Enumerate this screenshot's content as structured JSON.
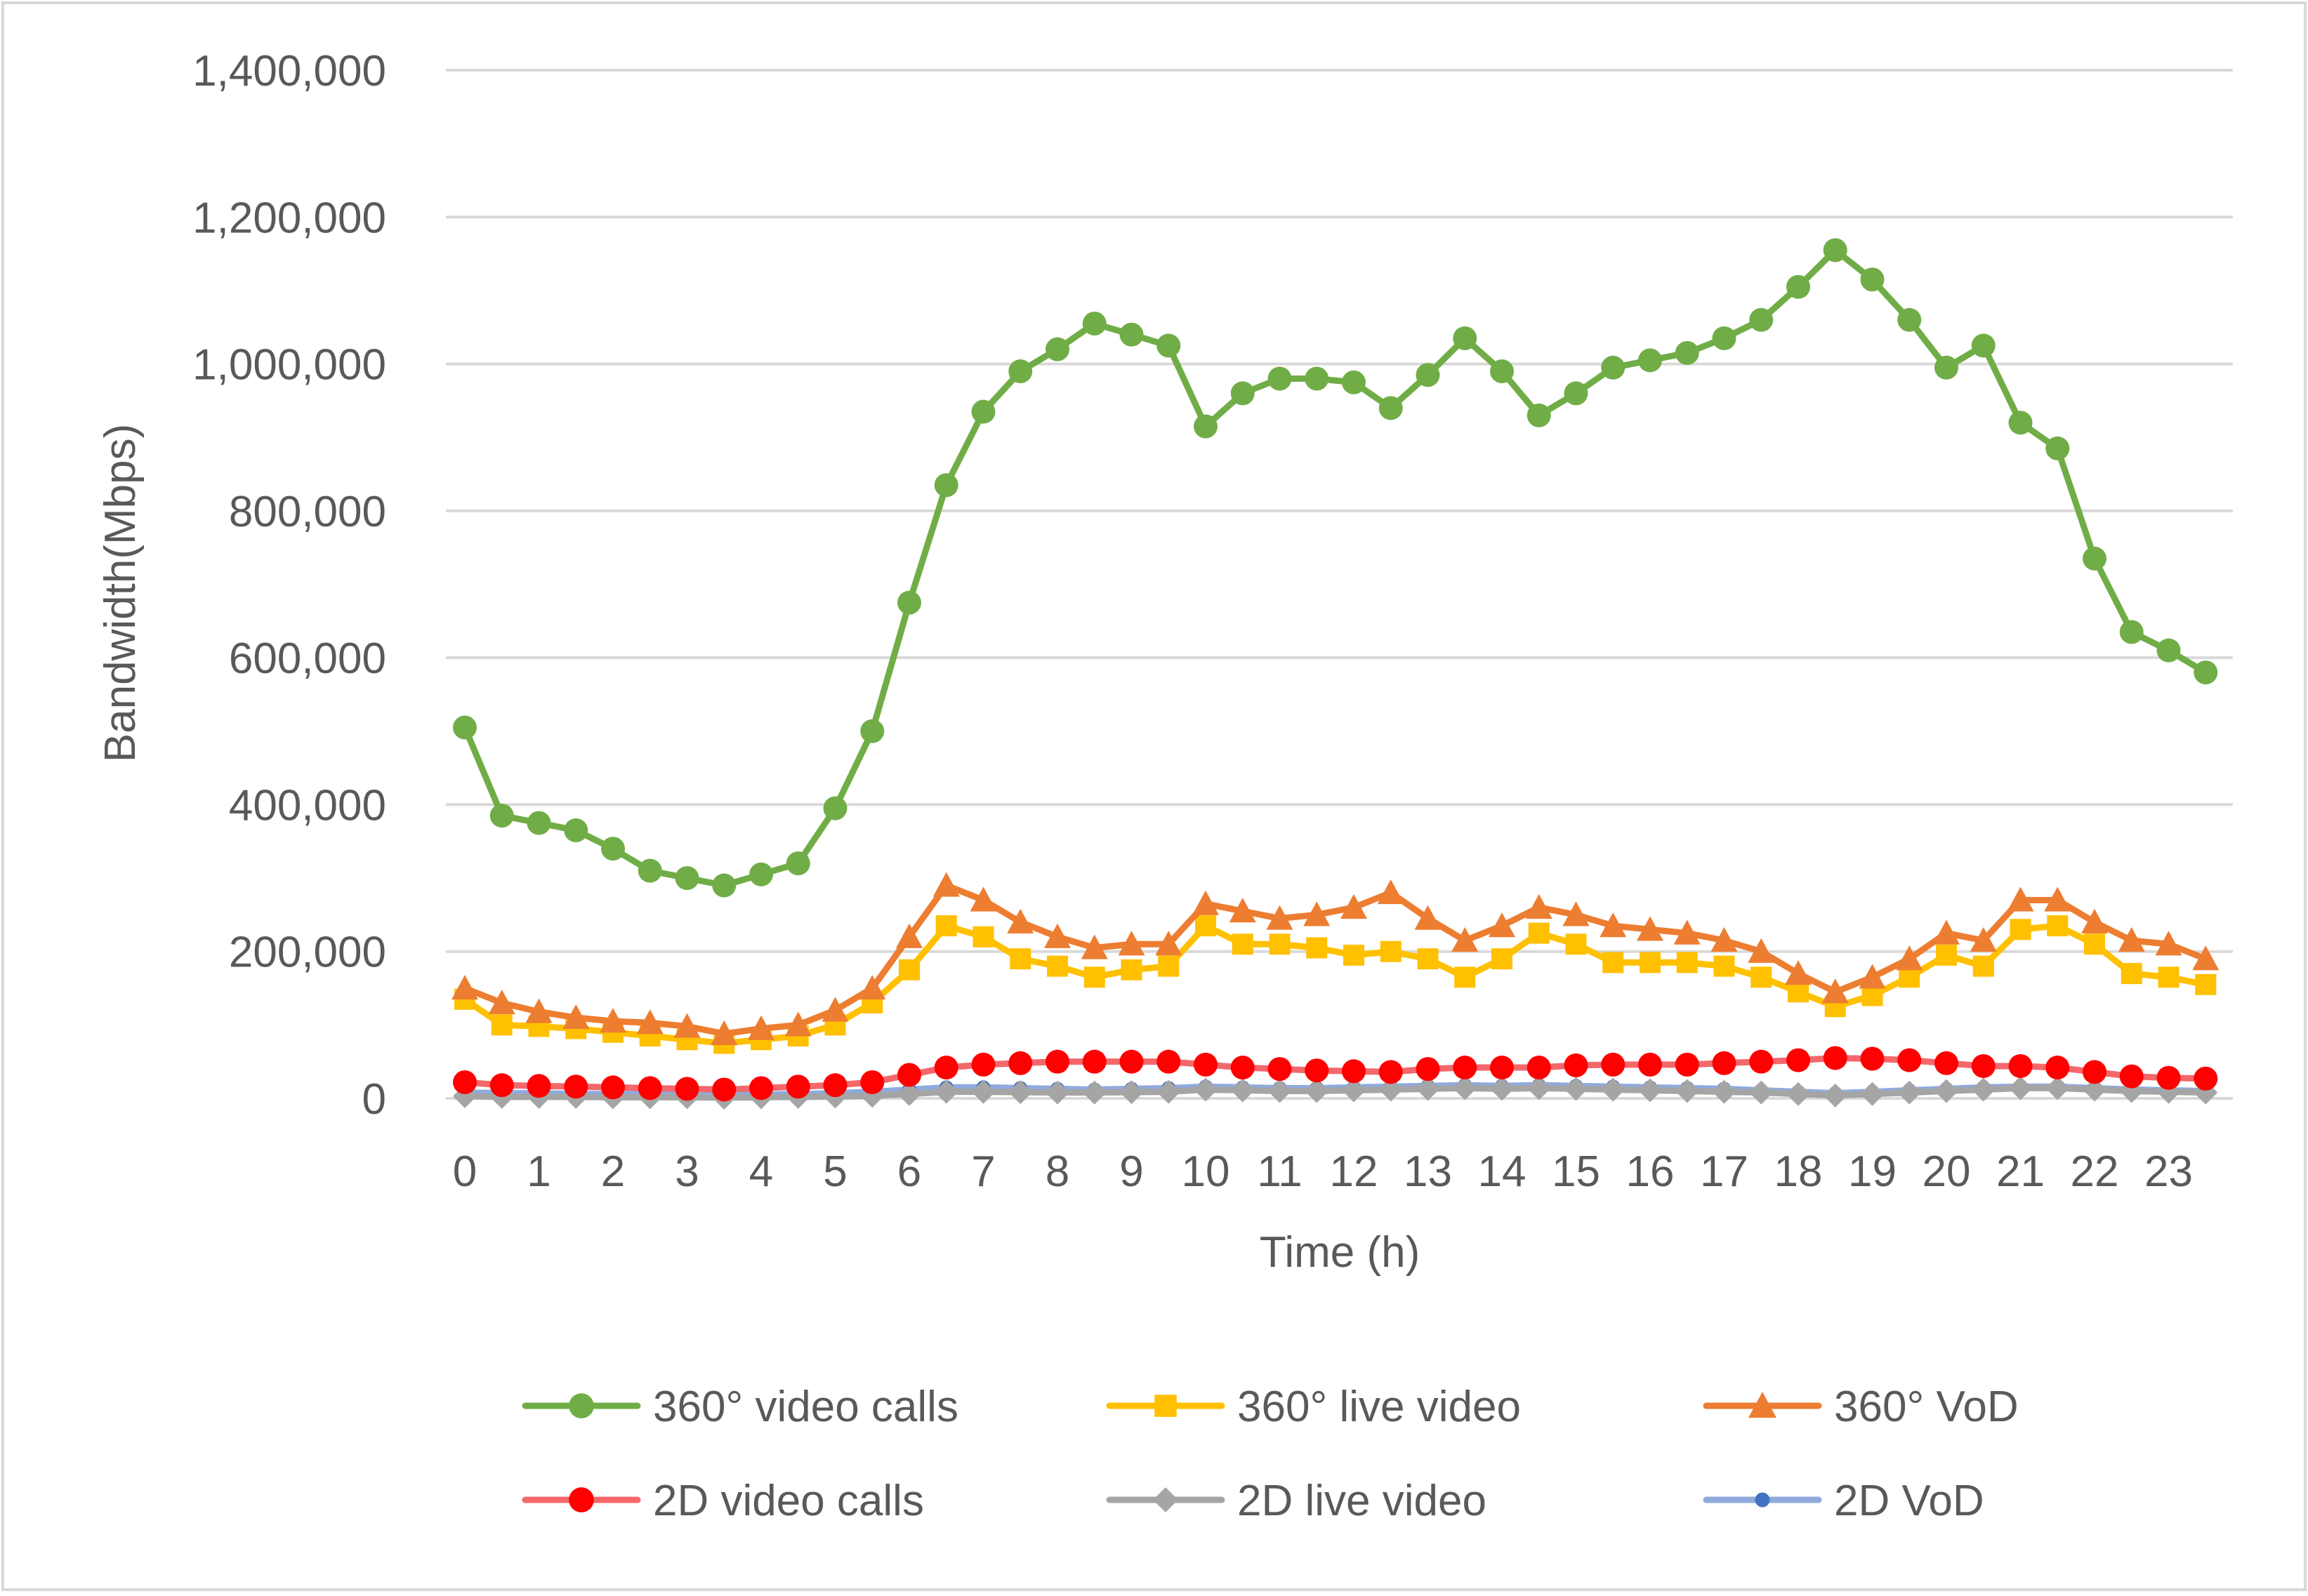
{
  "chart_data": {
    "type": "line",
    "title": "",
    "xlabel": "Time (h)",
    "ylabel": "Bandwidth(Mbps)",
    "ylim": [
      0,
      1400000
    ],
    "yticks": [
      "0",
      "200,000",
      "400,000",
      "600,000",
      "800,000",
      "1,000,000",
      "1,200,000",
      "1,400,000"
    ],
    "ytick_values": [
      0,
      200000,
      400000,
      600000,
      800000,
      1000000,
      1200000,
      1400000
    ],
    "xtick_labels": [
      "0",
      "1",
      "2",
      "3",
      "4",
      "5",
      "6",
      "7",
      "8",
      "9",
      "10",
      "11",
      "12",
      "13",
      "14",
      "15",
      "16",
      "17",
      "18",
      "19",
      "20",
      "21",
      "22",
      "23"
    ],
    "x": [
      0,
      0.5,
      1,
      1.5,
      2,
      2.5,
      3,
      3.5,
      4,
      4.5,
      5,
      5.5,
      6,
      6.5,
      7,
      7.5,
      8,
      8.5,
      9,
      9.5,
      10,
      10.5,
      11,
      11.5,
      12,
      12.5,
      13,
      13.5,
      14,
      14.5,
      15,
      15.5,
      16,
      16.5,
      17,
      17.5,
      18,
      18.5,
      19,
      19.5,
      20,
      20.5,
      21,
      21.5,
      22,
      22.5,
      23,
      23.5
    ],
    "grid": true,
    "legend_position": "bottom",
    "series": [
      {
        "name": "360° video calls",
        "color": "#70AD47",
        "marker": "circle",
        "values": [
          505000,
          385000,
          375000,
          365000,
          340000,
          310000,
          300000,
          290000,
          305000,
          320000,
          395000,
          500000,
          675000,
          835000,
          935000,
          990000,
          1020000,
          1055000,
          1040000,
          1025000,
          915000,
          960000,
          980000,
          980000,
          975000,
          940000,
          985000,
          1035000,
          990000,
          930000,
          960000,
          995000,
          1005000,
          1015000,
          1035000,
          1060000,
          1105000,
          1155000,
          1115000,
          1060000,
          995000,
          1025000,
          920000,
          885000,
          735000,
          635000,
          610000,
          580000
        ]
      },
      {
        "name": "360° live video",
        "color": "#FFC000",
        "marker": "square",
        "values": [
          135000,
          100000,
          98000,
          95000,
          90000,
          85000,
          80000,
          75000,
          80000,
          85000,
          100000,
          130000,
          175000,
          235000,
          220000,
          190000,
          180000,
          165000,
          175000,
          180000,
          235000,
          210000,
          210000,
          205000,
          195000,
          200000,
          190000,
          165000,
          190000,
          225000,
          210000,
          185000,
          185000,
          185000,
          180000,
          165000,
          145000,
          125000,
          140000,
          165000,
          195000,
          180000,
          230000,
          235000,
          210000,
          170000,
          165000,
          155000
        ]
      },
      {
        "name": "360° VoD",
        "color": "#ED7D31",
        "marker": "triangle",
        "values": [
          150000,
          130000,
          118000,
          110000,
          105000,
          103000,
          98000,
          88000,
          95000,
          100000,
          120000,
          150000,
          220000,
          290000,
          270000,
          240000,
          220000,
          205000,
          210000,
          210000,
          265000,
          255000,
          245000,
          250000,
          260000,
          280000,
          245000,
          215000,
          235000,
          260000,
          250000,
          235000,
          230000,
          225000,
          215000,
          200000,
          170000,
          145000,
          165000,
          190000,
          225000,
          215000,
          270000,
          270000,
          240000,
          215000,
          210000,
          190000
        ]
      },
      {
        "name": "2D video calls",
        "color": "#FF0000",
        "line_color": "#F4676B",
        "marker": "circle",
        "values": [
          22000,
          18000,
          17000,
          16000,
          15000,
          14000,
          13000,
          12000,
          14000,
          16000,
          18000,
          22000,
          32000,
          42000,
          46000,
          48000,
          50000,
          50000,
          50000,
          50000,
          46000,
          42000,
          40000,
          38000,
          37000,
          36000,
          40000,
          42000,
          42000,
          42000,
          45000,
          46000,
          46000,
          46000,
          48000,
          50000,
          52000,
          55000,
          54000,
          52000,
          48000,
          44000,
          44000,
          42000,
          36000,
          30000,
          28000,
          27000
        ]
      },
      {
        "name": "2D live video",
        "color": "#A5A5A5",
        "line_color": "#A5A5A5",
        "marker": "diamond",
        "values": [
          3000,
          2000,
          2000,
          2000,
          1500,
          1500,
          1500,
          1000,
          1500,
          2000,
          2500,
          3500,
          6000,
          9000,
          9000,
          8500,
          8000,
          8000,
          8500,
          9000,
          12000,
          11000,
          10000,
          10000,
          11000,
          12000,
          13000,
          14000,
          13000,
          14000,
          13000,
          12000,
          11000,
          10000,
          9000,
          8000,
          6000,
          4000,
          6000,
          8000,
          10000,
          12000,
          14000,
          14000,
          12000,
          10000,
          9000,
          8000
        ]
      },
      {
        "name": "2D VoD",
        "color": "#4472C4",
        "line_color": "#8FAADC",
        "marker": "dot",
        "values": [
          8000,
          7000,
          7000,
          6000,
          6000,
          6000,
          5000,
          5000,
          5000,
          6000,
          7000,
          9000,
          12000,
          15000,
          15000,
          14000,
          13000,
          12000,
          13000,
          14000,
          16000,
          15000,
          14000,
          14000,
          15000,
          16000,
          17000,
          18000,
          17000,
          18000,
          17000,
          16000,
          15000,
          14000,
          13000,
          11000,
          9000,
          7000,
          9000,
          11000,
          13000,
          15000,
          16000,
          16000,
          14000,
          12000,
          11000,
          10000
        ]
      }
    ]
  }
}
